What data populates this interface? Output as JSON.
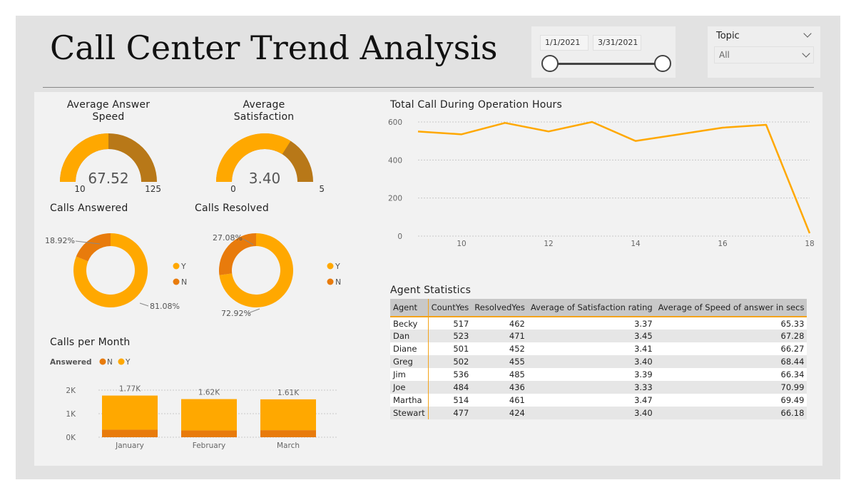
{
  "header": {
    "title": "Call Center Trend Analysis"
  },
  "date_slicer": {
    "start": "1/1/2021",
    "end": "3/31/2021"
  },
  "topic_slicer": {
    "label": "Topic",
    "selected": "All"
  },
  "colors": {
    "primary": "#ffa800",
    "secondary": "#b87818",
    "dark_orange": "#e87b0c",
    "accent": "#f4a31a"
  },
  "chart_data": [
    {
      "type": "gauge",
      "title": "Average Answer Speed",
      "value": 67.52,
      "value_label": "67.52",
      "min": 10,
      "max": 125,
      "min_label": "10",
      "max_label": "125"
    },
    {
      "type": "gauge",
      "title": "Average Satisfaction",
      "value": 3.4,
      "value_label": "3.40",
      "min": 0,
      "max": 5,
      "min_label": "0",
      "max_label": "5"
    },
    {
      "type": "pie",
      "subtype": "donut",
      "title": "Calls Answered",
      "slices": [
        {
          "name": "Y",
          "value": 81.08,
          "label": "81.08%",
          "color": "#ffa800"
        },
        {
          "name": "N",
          "value": 18.92,
          "label": "18.92%",
          "color": "#e87b0c"
        }
      ]
    },
    {
      "type": "pie",
      "subtype": "donut",
      "title": "Calls Resolved",
      "slices": [
        {
          "name": "Y",
          "value": 72.92,
          "label": "72.92%",
          "color": "#ffa800"
        },
        {
          "name": "N",
          "value": 27.08,
          "label": "27.08%",
          "color": "#e87b0c"
        }
      ]
    },
    {
      "type": "bar",
      "stacked": true,
      "title": "Calls per Month",
      "legend_title": "Answered",
      "categories": [
        "January",
        "February",
        "March"
      ],
      "series": [
        {
          "name": "N",
          "values": [
            320,
            290,
            300
          ],
          "color": "#e87b0c"
        },
        {
          "name": "Y",
          "values": [
            1450,
            1330,
            1310
          ],
          "color": "#ffa800"
        }
      ],
      "totals": [
        "1.77K",
        "1.62K",
        "1.61K"
      ],
      "yticks": [
        "0K",
        "1K",
        "2K"
      ],
      "ylim": [
        0,
        2000
      ]
    },
    {
      "type": "line",
      "title": "Total Call During Operation Hours",
      "x": [
        9,
        10,
        11,
        12,
        13,
        14,
        15,
        16,
        17,
        18
      ],
      "y": [
        550,
        535,
        595,
        550,
        600,
        500,
        535,
        570,
        585,
        15
      ],
      "xticks": [
        "10",
        "12",
        "14",
        "16",
        "18"
      ],
      "yticks": [
        "0",
        "200",
        "400",
        "600"
      ],
      "xlim": [
        9,
        18
      ],
      "ylim": [
        0,
        600
      ]
    },
    {
      "type": "table",
      "title": "Agent Statistics",
      "columns": [
        "Agent",
        "CountYes",
        "ResolvedYes",
        "Average of Satisfaction rating",
        "Average of Speed of answer in secs"
      ],
      "rows": [
        [
          "Becky",
          "517",
          "462",
          "3.37",
          "65.33"
        ],
        [
          "Dan",
          "523",
          "471",
          "3.45",
          "67.28"
        ],
        [
          "Diane",
          "501",
          "452",
          "3.41",
          "66.27"
        ],
        [
          "Greg",
          "502",
          "455",
          "3.40",
          "68.44"
        ],
        [
          "Jim",
          "536",
          "485",
          "3.39",
          "66.34"
        ],
        [
          "Joe",
          "484",
          "436",
          "3.33",
          "70.99"
        ],
        [
          "Martha",
          "514",
          "461",
          "3.47",
          "69.49"
        ],
        [
          "Stewart",
          "477",
          "424",
          "3.40",
          "66.18"
        ]
      ]
    }
  ]
}
